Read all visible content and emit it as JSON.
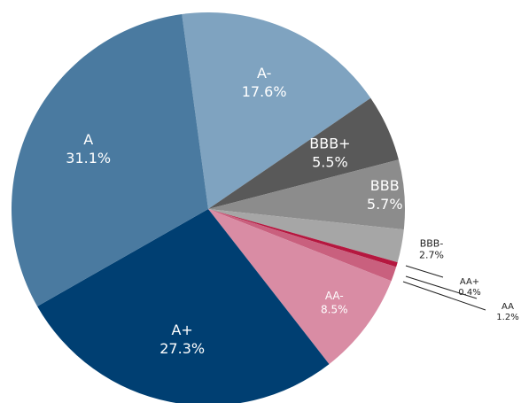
{
  "chart_data": {
    "type": "pie",
    "categories": [
      "A-",
      "BBB+",
      "BBB",
      "BBB-",
      "AA+",
      "AA",
      "AA-",
      "A+",
      "A"
    ],
    "values": [
      17.6,
      5.5,
      5.7,
      2.7,
      0.4,
      1.2,
      8.5,
      27.3,
      31.1
    ],
    "value_labels": [
      "17.6%",
      "5.5%",
      "5.7%",
      "2.7%",
      "0.4%",
      "1.2%",
      "8.5%",
      "27.3%",
      "31.1%"
    ],
    "colors": [
      "#7fa3c0",
      "#595959",
      "#8c8c8c",
      "#a6a6a6",
      "#b5173f",
      "#c9607e",
      "#d98ca4",
      "#003f72",
      "#4a7aa0"
    ]
  }
}
